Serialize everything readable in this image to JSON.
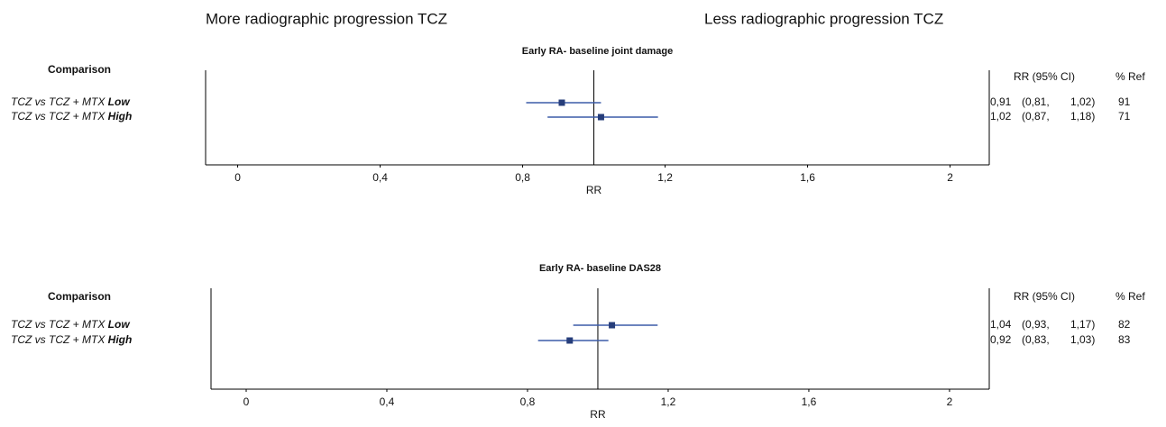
{
  "chart_data": [
    {
      "type": "forest",
      "annotations": [
        "More radiographic progression TCZ",
        "Less radiographic progression TCZ"
      ],
      "title": "Early RA- baseline joint damage",
      "xlabel": "RR",
      "column_headers": [
        "Comparison",
        "RR (95% CI)",
        "% Ref"
      ],
      "categories": [
        "TCZ vs TCZ + MTX",
        "TCZ vs TCZ + MTX"
      ],
      "emphasis": [
        "Low",
        "High"
      ],
      "values": [
        0.91,
        1.02
      ],
      "value_labels": [
        "0,91",
        "1,02"
      ],
      "lower": [
        0.81,
        0.87
      ],
      "lower_labels": [
        "(0,81,",
        "(0,87,"
      ],
      "upper": [
        1.02,
        1.18
      ],
      "upper_labels": [
        "1,02)",
        "1,18)"
      ],
      "ref": [
        91,
        71
      ],
      "reference_line": 1,
      "color": "#3b5ba8",
      "marker_color": "#263d7a",
      "xlim": [
        -0.09,
        2.11
      ],
      "xticks": [
        0,
        {
          "value": 0.4,
          "label": "0,4"
        },
        {
          "value": 0.8,
          "label": "0,8"
        },
        {
          "value": 1.2,
          "label": "1,2"
        },
        {
          "value": 1.6,
          "label": "1,6"
        },
        2
      ]
    },
    {
      "type": "forest",
      "title": "Early RA- baseline DAS28",
      "xlabel": "RR",
      "column_headers": [
        "Comparison",
        "RR (95% CI)",
        "% Ref"
      ],
      "categories": [
        "TCZ vs TCZ + MTX",
        "TCZ vs TCZ + MTX"
      ],
      "emphasis": [
        "Low",
        "High"
      ],
      "values": [
        1.04,
        0.92
      ],
      "value_labels": [
        "1,04",
        "0,92"
      ],
      "lower": [
        0.93,
        0.83
      ],
      "lower_labels": [
        "(0,93,",
        "(0,83,"
      ],
      "upper": [
        1.17,
        1.03
      ],
      "upper_labels": [
        "1,17)",
        "1,03)"
      ],
      "ref": [
        82,
        83
      ],
      "reference_line": 1,
      "color": "#3b5ba8",
      "marker_color": "#263d7a",
      "xlim": [
        -0.1,
        2.113
      ],
      "xticks": [
        0,
        {
          "value": 0.4,
          "label": "0,4"
        },
        {
          "value": 0.8,
          "label": "0,8"
        },
        {
          "value": 1.2,
          "label": "1,2"
        },
        {
          "value": 1.6,
          "label": "1,6"
        },
        2
      ]
    }
  ]
}
